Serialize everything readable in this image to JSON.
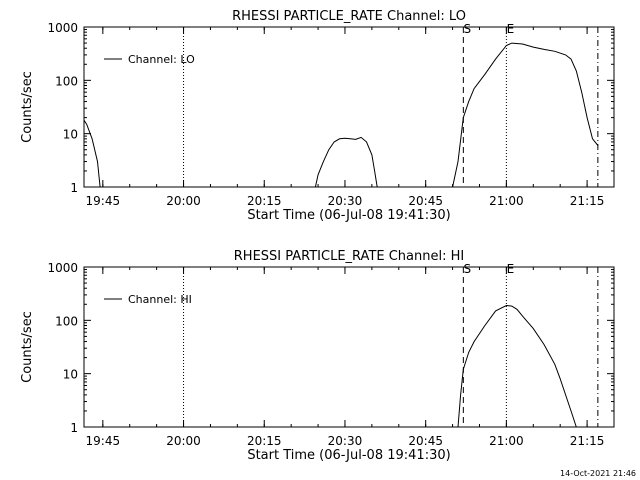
{
  "footer": {
    "timestamp": "14-Oct-2021 21:46"
  },
  "chart_data": [
    {
      "type": "line",
      "title": "RHESSI PARTICLE_RATE Channel: LO",
      "xlabel": "Start Time (06-Jul-08 19:41:30)",
      "ylabel": "Counts/sec",
      "yscale": "log",
      "ylim": [
        1,
        1000
      ],
      "xlim": [
        "19:41:30",
        "21:20:00"
      ],
      "yticks": [
        "1",
        "10",
        "100",
        "1000"
      ],
      "xticks": [
        "19:45",
        "20:00",
        "20:15",
        "20:30",
        "20:45",
        "21:00",
        "21:15"
      ],
      "legend": {
        "entries": [
          "Channel: LO"
        ],
        "placement": "top-left"
      },
      "markers": [
        {
          "time": "20:00",
          "style": "dotted",
          "label": ""
        },
        {
          "time": "20:52",
          "style": "dashed",
          "label": "S"
        },
        {
          "time": "21:00",
          "style": "dotted",
          "label": "E"
        },
        {
          "time": "21:17",
          "style": "dash-dot",
          "label": ""
        }
      ],
      "series": [
        {
          "name": "Channel: LO",
          "segments": [
            [
              [
                "19:41:30",
                18
              ],
              [
                "19:42",
                15
              ],
              [
                "19:43",
                8
              ],
              [
                "19:44",
                3
              ],
              [
                "19:44:30",
                1
              ]
            ],
            [
              [
                "20:24:30",
                1
              ],
              [
                "20:25",
                1.7
              ],
              [
                "20:26",
                3
              ],
              [
                "20:27",
                5
              ],
              [
                "20:28",
                7
              ],
              [
                "20:29",
                8
              ],
              [
                "20:30",
                8.2
              ],
              [
                "20:31",
                8
              ],
              [
                "20:32",
                7.8
              ],
              [
                "20:33",
                8.5
              ],
              [
                "20:34",
                7
              ],
              [
                "20:35",
                4
              ],
              [
                "20:35:30",
                2
              ],
              [
                "20:36",
                1
              ]
            ],
            [
              [
                "20:50",
                1
              ],
              [
                "20:51",
                3
              ],
              [
                "20:52",
                20
              ],
              [
                "20:53",
                40
              ],
              [
                "20:54",
                70
              ],
              [
                "20:56",
                130
              ],
              [
                "20:58",
                250
              ],
              [
                "21:00",
                450
              ],
              [
                "21:01",
                500
              ],
              [
                "21:03",
                480
              ],
              [
                "21:05",
                420
              ],
              [
                "21:07",
                380
              ],
              [
                "21:09",
                350
              ],
              [
                "21:11",
                300
              ],
              [
                "21:12",
                250
              ],
              [
                "21:13",
                150
              ],
              [
                "21:14",
                60
              ],
              [
                "21:15",
                20
              ],
              [
                "21:16",
                8
              ],
              [
                "21:17",
                6
              ]
            ]
          ]
        }
      ]
    },
    {
      "type": "line",
      "title": "RHESSI PARTICLE_RATE Channel: HI",
      "xlabel": "Start Time (06-Jul-08 19:41:30)",
      "ylabel": "Counts/sec",
      "yscale": "log",
      "ylim": [
        1,
        1000
      ],
      "xlim": [
        "19:41:30",
        "21:20:00"
      ],
      "yticks": [
        "1",
        "10",
        "100",
        "1000"
      ],
      "xticks": [
        "19:45",
        "20:00",
        "20:15",
        "20:30",
        "20:45",
        "21:00",
        "21:15"
      ],
      "legend": {
        "entries": [
          "Channel: HI"
        ],
        "placement": "top-left"
      },
      "markers": [
        {
          "time": "20:00",
          "style": "dotted",
          "label": ""
        },
        {
          "time": "20:52",
          "style": "dashed",
          "label": "S"
        },
        {
          "time": "21:00",
          "style": "dotted",
          "label": "E"
        },
        {
          "time": "21:17",
          "style": "dash-dot",
          "label": ""
        }
      ],
      "series": [
        {
          "name": "Channel: HI",
          "segments": [
            [
              [
                "20:51",
                1
              ],
              [
                "20:51:30",
                4
              ],
              [
                "20:52",
                12
              ],
              [
                "20:53",
                25
              ],
              [
                "20:54",
                40
              ],
              [
                "20:56",
                80
              ],
              [
                "20:58",
                150
              ],
              [
                "21:00",
                190
              ],
              [
                "21:01",
                185
              ],
              [
                "21:02",
                160
              ],
              [
                "21:03",
                120
              ],
              [
                "21:05",
                70
              ],
              [
                "21:07",
                35
              ],
              [
                "21:09",
                15
              ],
              [
                "21:10",
                8
              ],
              [
                "21:11",
                4
              ],
              [
                "21:12",
                2
              ],
              [
                "21:13",
                1
              ]
            ]
          ]
        }
      ]
    }
  ]
}
